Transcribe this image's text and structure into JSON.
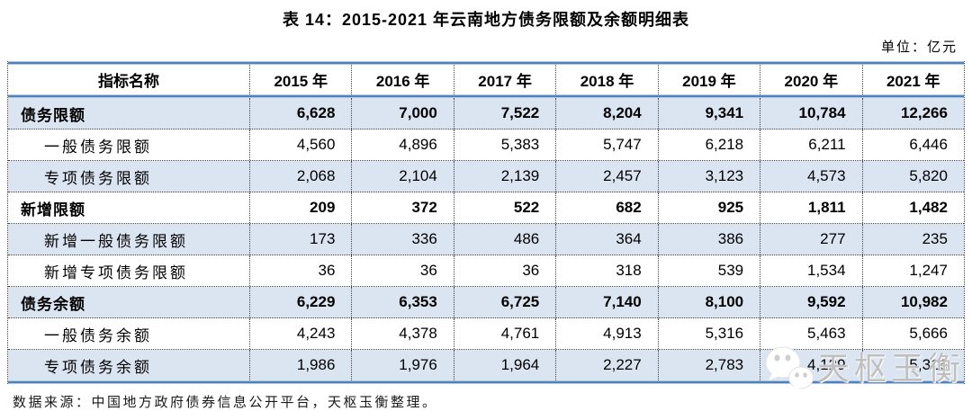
{
  "title": "表 14：2015-2021 年云南地方债务限额及余额明细表",
  "unit_label": "单位：亿元",
  "source_note": "数据来源：中国地方政府债券信息公开平台，天枢玉衡整理。",
  "watermark": {
    "text": "天枢玉衡",
    "icon": "wechat-bubbles-icon"
  },
  "colors": {
    "accent_blue": "#4f81bd",
    "band_edge": "#b3c9e2",
    "row_shade": "#dbe5f1",
    "dotted_border": "#444444",
    "watermark_gray": "#bcbcbc"
  },
  "table": {
    "header": [
      "指标名称",
      "2015 年",
      "2016 年",
      "2017 年",
      "2018 年",
      "2019 年",
      "2020 年",
      "2021 年"
    ],
    "rows": [
      {
        "label": "债务限额",
        "bold": true,
        "shaded": true,
        "indent": false,
        "values": [
          "6,628",
          "7,000",
          "7,522",
          "8,204",
          "9,341",
          "10,784",
          "12,266"
        ]
      },
      {
        "label": "一般债务限额",
        "bold": false,
        "shaded": false,
        "indent": true,
        "values": [
          "4,560",
          "4,896",
          "5,383",
          "5,747",
          "6,218",
          "6,211",
          "6,446"
        ]
      },
      {
        "label": "专项债务限额",
        "bold": false,
        "shaded": true,
        "indent": true,
        "values": [
          "2,068",
          "2,104",
          "2,139",
          "2,457",
          "3,123",
          "4,573",
          "5,820"
        ]
      },
      {
        "label": "新增限额",
        "bold": true,
        "shaded": false,
        "indent": false,
        "values": [
          "209",
          "372",
          "522",
          "682",
          "925",
          "1,811",
          "1,482"
        ]
      },
      {
        "label": "新增一般债务限额",
        "bold": false,
        "shaded": true,
        "indent": true,
        "values": [
          "173",
          "336",
          "486",
          "364",
          "386",
          "277",
          "235"
        ]
      },
      {
        "label": "新增专项债务限额",
        "bold": false,
        "shaded": false,
        "indent": true,
        "values": [
          "36",
          "36",
          "36",
          "318",
          "539",
          "1,534",
          "1,247"
        ]
      },
      {
        "label": "债务余额",
        "bold": true,
        "shaded": true,
        "indent": false,
        "values": [
          "6,229",
          "6,353",
          "6,725",
          "7,140",
          "8,100",
          "9,592",
          "10,982"
        ]
      },
      {
        "label": "一般债务余额",
        "bold": false,
        "shaded": false,
        "indent": true,
        "values": [
          "4,243",
          "4,378",
          "4,761",
          "4,913",
          "5,316",
          "5,463",
          "5,666"
        ]
      },
      {
        "label": "专项债务余额",
        "bold": false,
        "shaded": true,
        "indent": true,
        "values": [
          "1,986",
          "1,976",
          "1,964",
          "2,227",
          "2,783",
          "4,129",
          "5,316"
        ]
      }
    ]
  }
}
